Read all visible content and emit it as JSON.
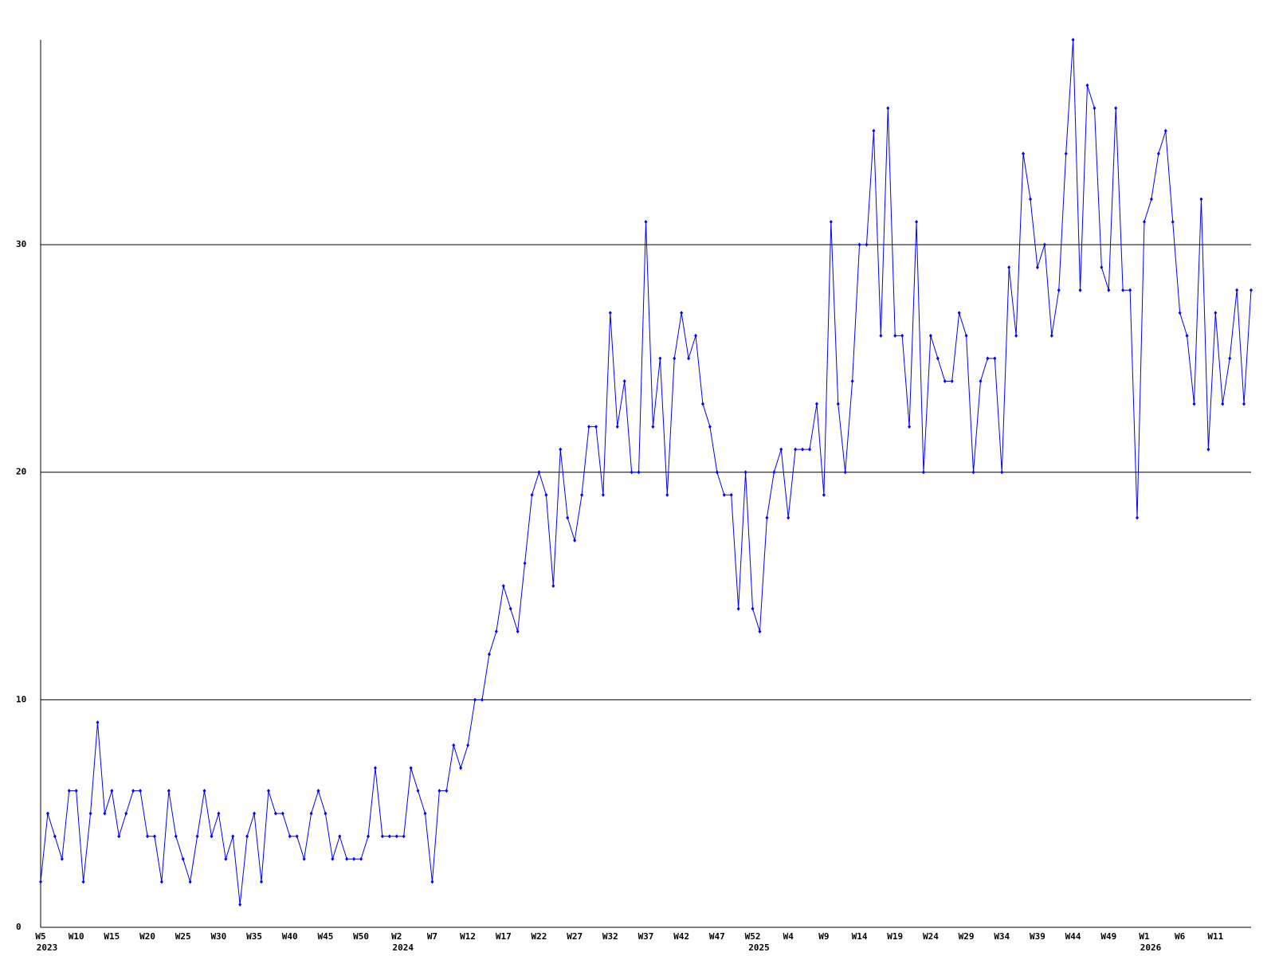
{
  "chart_data": {
    "type": "line",
    "color": "#0000ff",
    "grid": true,
    "ylim": [
      0,
      39
    ],
    "yticks": [
      0,
      10,
      20,
      30
    ],
    "categories": [
      "W5",
      null,
      null,
      null,
      null,
      "W10",
      null,
      null,
      null,
      null,
      "W15",
      null,
      null,
      null,
      null,
      "W20",
      null,
      null,
      null,
      null,
      "W25",
      null,
      null,
      null,
      null,
      "W30",
      null,
      null,
      null,
      null,
      "W35",
      null,
      null,
      null,
      null,
      "W40",
      null,
      null,
      null,
      null,
      "W45",
      null,
      null,
      null,
      null,
      "W50",
      null,
      null,
      null,
      null,
      "W2",
      null,
      null,
      null,
      null,
      "W7",
      null,
      null,
      null,
      null,
      "W12",
      null,
      null,
      null,
      null,
      "W17",
      null,
      null,
      null,
      null,
      "W22",
      null,
      null,
      null,
      null,
      "W27",
      null,
      null,
      null,
      null,
      "W32",
      null,
      null,
      null,
      null,
      "W37",
      null,
      null,
      null,
      null,
      "W42",
      null,
      null,
      null,
      null,
      "W47",
      null,
      null,
      null,
      null,
      "W52",
      null,
      null,
      null,
      null,
      "W4",
      null,
      null,
      null,
      null,
      "W9",
      null,
      null,
      null,
      null,
      "W14",
      null,
      null,
      null,
      null,
      "W19",
      null,
      null,
      null,
      null,
      "W24",
      null,
      null,
      null,
      null,
      "W29",
      null,
      null,
      null,
      null,
      "W34",
      null,
      null,
      null,
      null,
      "W39",
      null,
      null,
      null,
      null,
      "W44",
      null,
      null,
      null,
      null,
      "W49",
      null,
      null,
      null,
      null,
      "W1",
      null,
      null,
      null,
      null,
      "W6",
      null,
      null,
      null,
      null,
      "W11",
      null,
      null,
      null,
      null,
      null
    ],
    "years": [
      "2023",
      null,
      null,
      null,
      null,
      null,
      null,
      null,
      null,
      null,
      null,
      null,
      null,
      null,
      null,
      null,
      null,
      null,
      null,
      null,
      null,
      null,
      null,
      null,
      null,
      null,
      null,
      null,
      null,
      null,
      null,
      null,
      null,
      null,
      null,
      null,
      null,
      null,
      null,
      null,
      null,
      null,
      null,
      null,
      null,
      null,
      null,
      null,
      null,
      null,
      "2024",
      null,
      null,
      null,
      null,
      null,
      null,
      null,
      null,
      null,
      null,
      null,
      null,
      null,
      null,
      null,
      null,
      null,
      null,
      null,
      null,
      null,
      null,
      null,
      null,
      null,
      null,
      null,
      null,
      null,
      null,
      null,
      null,
      null,
      null,
      null,
      null,
      null,
      null,
      null,
      null,
      null,
      null,
      null,
      null,
      null,
      null,
      null,
      null,
      null,
      "2025",
      null,
      null,
      null,
      null,
      null,
      null,
      null,
      null,
      null,
      null,
      null,
      null,
      null,
      null,
      null,
      null,
      null,
      null,
      null,
      null,
      null,
      null,
      null,
      null,
      null,
      null,
      null,
      null,
      null,
      null,
      null,
      null,
      null,
      null,
      null,
      null,
      null,
      null,
      null,
      null,
      null,
      null,
      null,
      null,
      null,
      null,
      null,
      null,
      null,
      null,
      null,
      null,
      null,
      null,
      "2026",
      null,
      null,
      null,
      null,
      null,
      null,
      null,
      null,
      null,
      null,
      null,
      null,
      null,
      null,
      null
    ],
    "values": [
      2,
      5,
      4,
      3,
      6,
      6,
      2,
      5,
      9,
      5,
      6,
      4,
      5,
      6,
      6,
      4,
      4,
      2,
      6,
      4,
      3,
      2,
      4,
      6,
      4,
      5,
      3,
      4,
      1,
      4,
      5,
      2,
      6,
      5,
      5,
      4,
      4,
      3,
      5,
      6,
      5,
      3,
      4,
      3,
      3,
      3,
      4,
      7,
      4,
      4,
      4,
      4,
      7,
      6,
      5,
      2,
      6,
      6,
      8,
      7,
      8,
      10,
      10,
      12,
      13,
      15,
      14,
      13,
      16,
      19,
      20,
      19,
      15,
      21,
      18,
      17,
      19,
      22,
      22,
      19,
      27,
      22,
      24,
      20,
      20,
      31,
      22,
      25,
      19,
      25,
      27,
      25,
      26,
      23,
      22,
      20,
      19,
      19,
      14,
      20,
      14,
      13,
      18,
      20,
      21,
      18,
      21,
      21,
      21,
      23,
      19,
      31,
      23,
      20,
      24,
      30,
      30,
      35,
      26,
      36,
      26,
      26,
      22,
      31,
      20,
      26,
      25,
      24,
      24,
      27,
      26,
      20,
      24,
      25,
      25,
      20,
      29,
      26,
      34,
      32,
      29,
      30,
      26,
      28,
      34,
      39,
      28,
      37,
      36,
      29,
      28,
      36,
      28,
      28,
      18,
      31,
      32,
      34,
      35,
      31,
      27,
      26,
      23,
      32,
      21,
      27,
      23,
      25,
      28,
      23,
      28
    ]
  }
}
